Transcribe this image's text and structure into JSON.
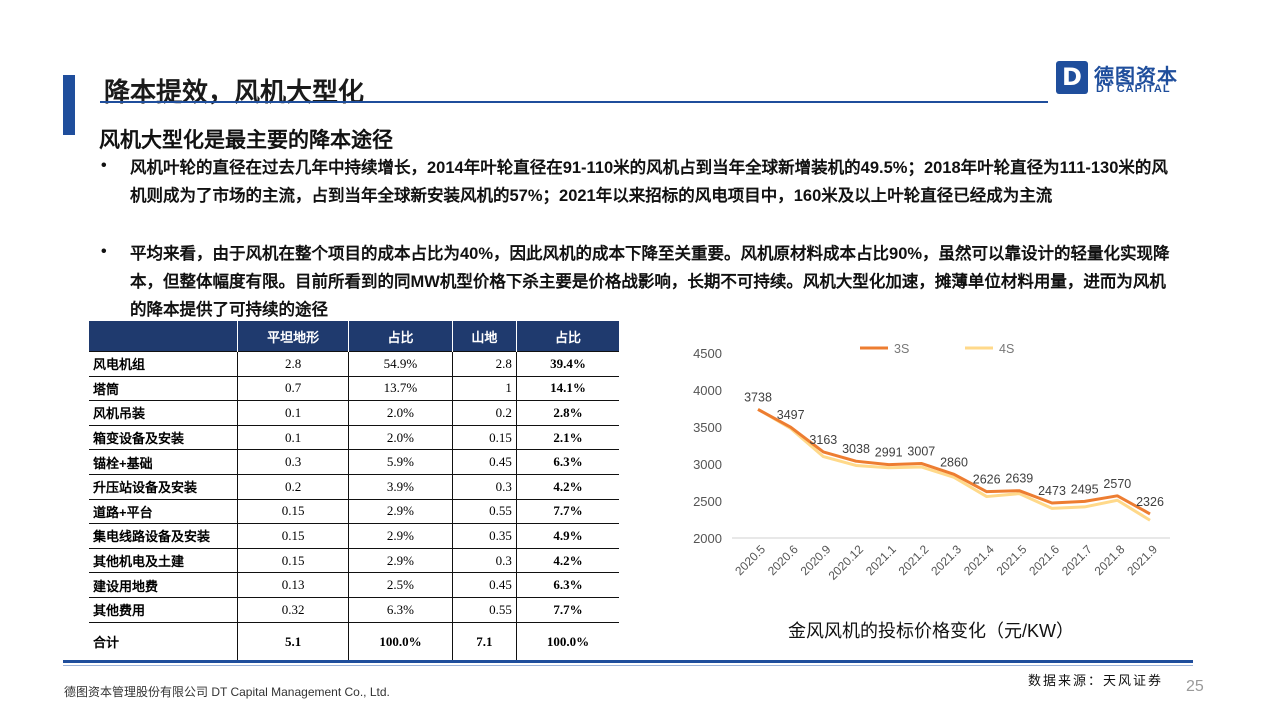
{
  "header": {
    "title": "降本提效，风机大型化",
    "logo_mark": "D",
    "logo_cn": "德图资本",
    "logo_en": "DT CAPITAL"
  },
  "subtitle": "风机大型化是最主要的降本途径",
  "bullets": [
    "风机叶轮的直径在过去几年中持续增长，2014年叶轮直径在91-110米的风机占到当年全球新增装机的49.5%；2018年叶轮直径为111-130米的风机则成为了市场的主流，占到当年全球新安装风机的57%；2021年以来招标的风电项目中，160米及以上叶轮直径已经成为主流",
    "平均来看，由于风机在整个项目的成本占比为40%，因此风机的成本下降至关重要。风机原材料成本占比90%，虽然可以靠设计的轻量化实现降本，但整体幅度有限。目前所看到的同MW机型价格下杀主要是价格战影响，长期不可持续。风机大型化加速，摊薄单位材料用量，进而为风机的降本提供了可持续的途径"
  ],
  "bullet_symbol": "•",
  "table": {
    "headers": [
      "",
      "平坦地形",
      "占比",
      "山地",
      "占比"
    ],
    "rows": [
      {
        "name": "风电机组",
        "flat": "2.8",
        "flat_pct": "54.9%",
        "mount": "2.8",
        "mount_pct": "39.4%"
      },
      {
        "name": "塔筒",
        "flat": "0.7",
        "flat_pct": "13.7%",
        "mount": "1",
        "mount_pct": "14.1%"
      },
      {
        "name": "风机吊装",
        "flat": "0.1",
        "flat_pct": "2.0%",
        "mount": "0.2",
        "mount_pct": "2.8%"
      },
      {
        "name": "箱变设备及安装",
        "flat": "0.1",
        "flat_pct": "2.0%",
        "mount": "0.15",
        "mount_pct": "2.1%"
      },
      {
        "name": "锚栓+基础",
        "flat": "0.3",
        "flat_pct": "5.9%",
        "mount": "0.45",
        "mount_pct": "6.3%"
      },
      {
        "name": "升压站设备及安装",
        "flat": "0.2",
        "flat_pct": "3.9%",
        "mount": "0.3",
        "mount_pct": "4.2%"
      },
      {
        "name": "道路+平台",
        "flat": "0.15",
        "flat_pct": "2.9%",
        "mount": "0.55",
        "mount_pct": "7.7%"
      },
      {
        "name": "集电线路设备及安装",
        "flat": "0.15",
        "flat_pct": "2.9%",
        "mount": "0.35",
        "mount_pct": "4.9%"
      },
      {
        "name": "其他机电及土建",
        "flat": "0.15",
        "flat_pct": "2.9%",
        "mount": "0.3",
        "mount_pct": "4.2%"
      },
      {
        "name": "建设用地费",
        "flat": "0.13",
        "flat_pct": "2.5%",
        "mount": "0.45",
        "mount_pct": "6.3%"
      },
      {
        "name": "其他费用",
        "flat": "0.32",
        "flat_pct": "6.3%",
        "mount": "0.55",
        "mount_pct": "7.7%"
      }
    ],
    "total": {
      "name": "合计",
      "flat": "5.1",
      "flat_pct": "100.0%",
      "mount": "7.1",
      "mount_pct": "100.0%"
    }
  },
  "chart_data": {
    "type": "line",
    "title": "",
    "x": [
      "2020.5",
      "2020.6",
      "2020.9",
      "2020.12",
      "2021.1",
      "2021.2",
      "2021.3",
      "2021.4",
      "2021.5",
      "2021.6",
      "2021.7",
      "2021.8",
      "2021.9"
    ],
    "series": [
      {
        "name": "3S",
        "color": "#ed7d31",
        "values": [
          3738,
          3497,
          3163,
          3038,
          2991,
          3007,
          2860,
          2626,
          2639,
          2473,
          2495,
          2570,
          2326
        ],
        "labels_shown": true
      },
      {
        "name": "4S",
        "color": "#ffd98a",
        "values": [
          3740,
          3480,
          3100,
          2980,
          2950,
          2960,
          2820,
          2560,
          2600,
          2400,
          2420,
          2510,
          2240
        ],
        "labels_shown": false
      }
    ],
    "ylim": [
      2000,
      4500
    ],
    "yticks": [
      2000,
      2500,
      3000,
      3500,
      4000,
      4500
    ],
    "grid": false,
    "legend": "top"
  },
  "chart_caption": "金风风机的投标价格变化（元/KW）",
  "footer": {
    "company": "德图资本管理股份有限公司 DT Capital Management Co., Ltd.",
    "source": "数据来源：天风证券",
    "page": "25"
  }
}
